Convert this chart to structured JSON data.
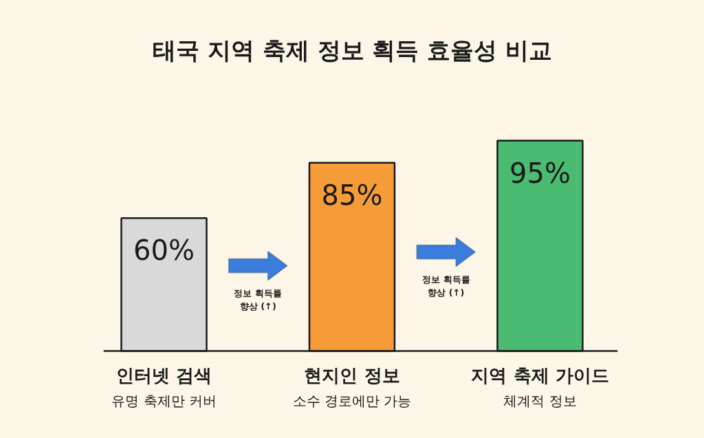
{
  "chart_data": {
    "type": "bar",
    "title": "태국 지역 축제 정보 획득 효율성 비교",
    "categories": [
      "인터넷 검색\n유명 축제만 커버",
      "현지인 정보\n소수 경로에만 가능",
      "지역 축제 가이드\n체계적 정보"
    ],
    "values": [
      60,
      85,
      95
    ],
    "colors": [
      "#d9d9d9",
      "#f59b38",
      "#4cbb72"
    ],
    "value_labels": [
      "60%",
      "85%",
      "95%"
    ],
    "annotations": [
      "정보 획득률\n향상 (↑)",
      "정보 획득률\n향상 (↑)"
    ]
  }
}
